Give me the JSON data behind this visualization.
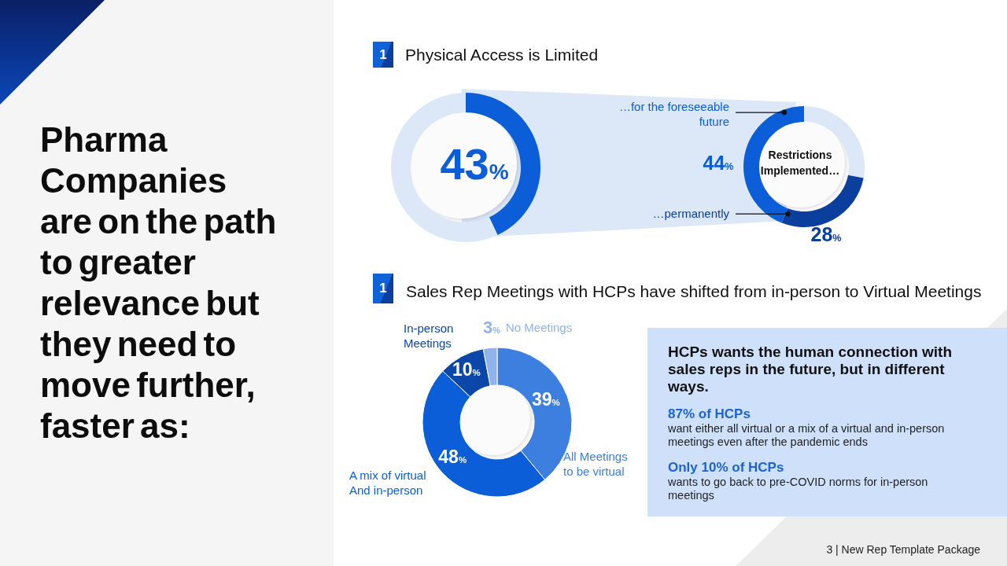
{
  "chart_data": [
    {
      "type": "other",
      "title": "Pharma Companies are on the path to greater relevance but they need to move further, faster as:"
    },
    {
      "type": "donut",
      "title": "Physical Access is Limited",
      "annotations": [
        "1"
      ],
      "categories": [
        null,
        null
      ],
      "values": [
        43,
        57
      ],
      "colors": [
        "#0b5ed7",
        "#dce7f8"
      ],
      "value_labels": [
        "43%",
        null
      ]
    },
    {
      "type": "donut",
      "title": "Restrictions Implemented…",
      "categories": [
        null,
        "…permanently",
        "…for the foreseeable future"
      ],
      "values": [
        28,
        28,
        44
      ],
      "colors": [
        "#dce7f8",
        "#0a3f9e",
        "#0b5ed7"
      ],
      "value_labels": [
        null,
        "28%",
        "44%"
      ]
    },
    {
      "type": "donut",
      "title": "Sales Rep Meetings with HCPs have shifted from in-person to Virtual Meetings",
      "annotations": [
        "1",
        "HCPs wants the human connection with sales reps in the future, but in different ways.",
        "87% of HCPs",
        "want either all virtual or a mix of a virtual and in-person meetings even after the pandemic ends",
        "Only 10% of HCPs",
        "wants to go back to pre-COVID norms for in-person meetings",
        "3 | New Rep Template Package"
      ],
      "categories": [
        "All Meetings to be virtual",
        "A mix of virtual And in-person",
        "In-person Meetings",
        "No Meetings"
      ],
      "values": [
        39,
        48,
        10,
        3
      ],
      "colors": [
        "#3d7fdf",
        "#0b5ed7",
        "#0a47a8",
        "#8fb3ea"
      ],
      "value_labels": [
        "39%",
        "48%",
        "10%",
        "3%"
      ]
    }
  ]
}
